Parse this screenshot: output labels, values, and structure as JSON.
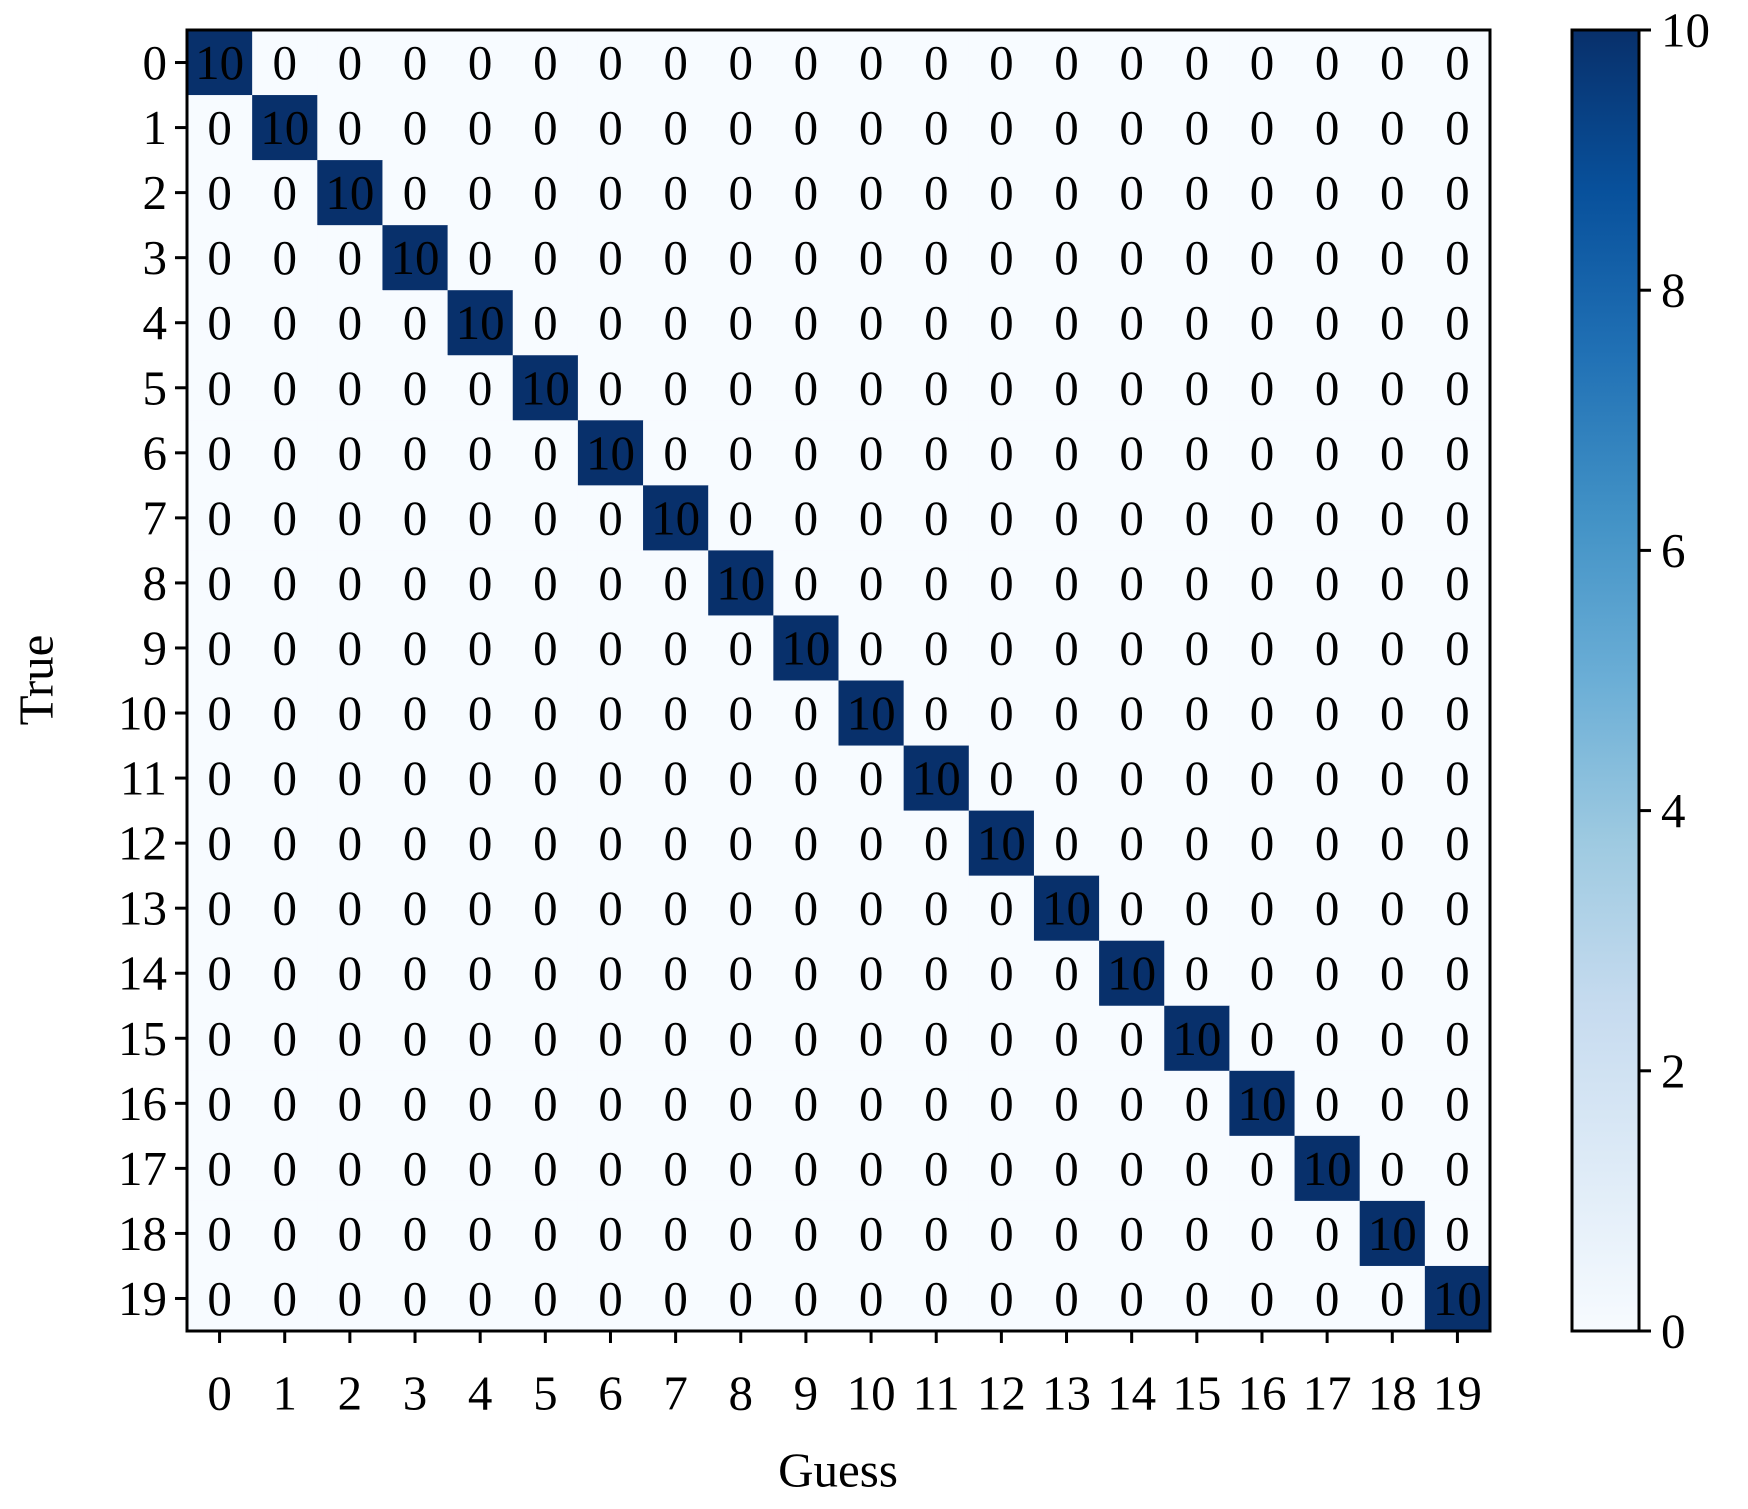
{
  "chart_data": {
    "type": "heatmap",
    "x_label": "Guess",
    "y_label": "True",
    "x_categories": [
      0,
      1,
      2,
      3,
      4,
      5,
      6,
      7,
      8,
      9,
      10,
      11,
      12,
      13,
      14,
      15,
      16,
      17,
      18,
      19
    ],
    "y_categories": [
      0,
      1,
      2,
      3,
      4,
      5,
      6,
      7,
      8,
      9,
      10,
      11,
      12,
      13,
      14,
      15,
      16,
      17,
      18,
      19
    ],
    "values": [
      [
        10,
        0,
        0,
        0,
        0,
        0,
        0,
        0,
        0,
        0,
        0,
        0,
        0,
        0,
        0,
        0,
        0,
        0,
        0,
        0
      ],
      [
        0,
        10,
        0,
        0,
        0,
        0,
        0,
        0,
        0,
        0,
        0,
        0,
        0,
        0,
        0,
        0,
        0,
        0,
        0,
        0
      ],
      [
        0,
        0,
        10,
        0,
        0,
        0,
        0,
        0,
        0,
        0,
        0,
        0,
        0,
        0,
        0,
        0,
        0,
        0,
        0,
        0
      ],
      [
        0,
        0,
        0,
        10,
        0,
        0,
        0,
        0,
        0,
        0,
        0,
        0,
        0,
        0,
        0,
        0,
        0,
        0,
        0,
        0
      ],
      [
        0,
        0,
        0,
        0,
        10,
        0,
        0,
        0,
        0,
        0,
        0,
        0,
        0,
        0,
        0,
        0,
        0,
        0,
        0,
        0
      ],
      [
        0,
        0,
        0,
        0,
        0,
        10,
        0,
        0,
        0,
        0,
        0,
        0,
        0,
        0,
        0,
        0,
        0,
        0,
        0,
        0
      ],
      [
        0,
        0,
        0,
        0,
        0,
        0,
        10,
        0,
        0,
        0,
        0,
        0,
        0,
        0,
        0,
        0,
        0,
        0,
        0,
        0
      ],
      [
        0,
        0,
        0,
        0,
        0,
        0,
        0,
        10,
        0,
        0,
        0,
        0,
        0,
        0,
        0,
        0,
        0,
        0,
        0,
        0
      ],
      [
        0,
        0,
        0,
        0,
        0,
        0,
        0,
        0,
        10,
        0,
        0,
        0,
        0,
        0,
        0,
        0,
        0,
        0,
        0,
        0
      ],
      [
        0,
        0,
        0,
        0,
        0,
        0,
        0,
        0,
        0,
        10,
        0,
        0,
        0,
        0,
        0,
        0,
        0,
        0,
        0,
        0
      ],
      [
        0,
        0,
        0,
        0,
        0,
        0,
        0,
        0,
        0,
        0,
        10,
        0,
        0,
        0,
        0,
        0,
        0,
        0,
        0,
        0
      ],
      [
        0,
        0,
        0,
        0,
        0,
        0,
        0,
        0,
        0,
        0,
        0,
        10,
        0,
        0,
        0,
        0,
        0,
        0,
        0,
        0
      ],
      [
        0,
        0,
        0,
        0,
        0,
        0,
        0,
        0,
        0,
        0,
        0,
        0,
        10,
        0,
        0,
        0,
        0,
        0,
        0,
        0
      ],
      [
        0,
        0,
        0,
        0,
        0,
        0,
        0,
        0,
        0,
        0,
        0,
        0,
        0,
        10,
        0,
        0,
        0,
        0,
        0,
        0
      ],
      [
        0,
        0,
        0,
        0,
        0,
        0,
        0,
        0,
        0,
        0,
        0,
        0,
        0,
        0,
        10,
        0,
        0,
        0,
        0,
        0
      ],
      [
        0,
        0,
        0,
        0,
        0,
        0,
        0,
        0,
        0,
        0,
        0,
        0,
        0,
        0,
        0,
        10,
        0,
        0,
        0,
        0
      ],
      [
        0,
        0,
        0,
        0,
        0,
        0,
        0,
        0,
        0,
        0,
        0,
        0,
        0,
        0,
        0,
        0,
        10,
        0,
        0,
        0
      ],
      [
        0,
        0,
        0,
        0,
        0,
        0,
        0,
        0,
        0,
        0,
        0,
        0,
        0,
        0,
        0,
        0,
        0,
        10,
        0,
        0
      ],
      [
        0,
        0,
        0,
        0,
        0,
        0,
        0,
        0,
        0,
        0,
        0,
        0,
        0,
        0,
        0,
        0,
        0,
        0,
        10,
        0
      ],
      [
        0,
        0,
        0,
        0,
        0,
        0,
        0,
        0,
        0,
        0,
        0,
        0,
        0,
        0,
        0,
        0,
        0,
        0,
        0,
        10
      ]
    ],
    "colormap": "Blues",
    "clim": [
      0,
      10
    ],
    "cticks": [
      0,
      2,
      4,
      6,
      8,
      10
    ]
  }
}
